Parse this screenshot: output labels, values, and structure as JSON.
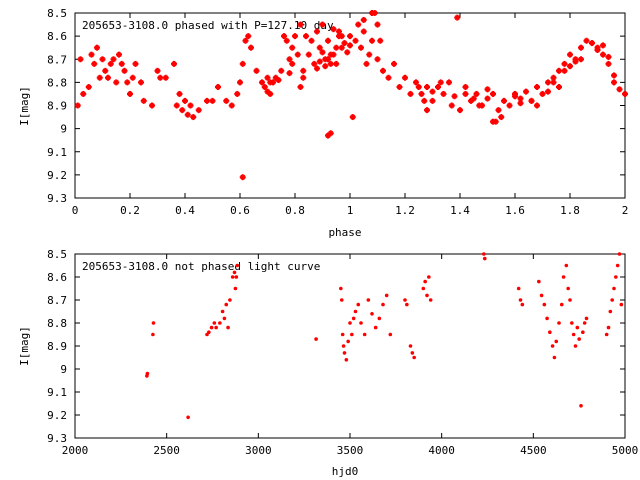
{
  "chart_data": [
    {
      "type": "scatter",
      "title": "205653-3108.0 phased with P=127.10 day",
      "xlabel": "phase",
      "ylabel": "I[mag]",
      "xlim": [
        0,
        2
      ],
      "ylim": [
        8.5,
        9.3
      ],
      "y_inverted": true,
      "grid": false,
      "color": "#ff0000",
      "x_ticks": [
        "0",
        "0.2",
        "0.4",
        "0.6",
        "0.8",
        "1",
        "1.2",
        "1.4",
        "1.6",
        "1.8",
        "2"
      ],
      "y_ticks": [
        "8.5",
        "8.6",
        "8.7",
        "8.8",
        "8.9",
        "9",
        "9.1",
        "9.2",
        "9.3"
      ],
      "x": [
        0.01,
        0.02,
        0.03,
        0.05,
        0.06,
        0.07,
        0.08,
        0.09,
        0.1,
        0.11,
        0.12,
        0.13,
        0.14,
        0.15,
        0.16,
        0.17,
        0.18,
        0.19,
        0.2,
        0.21,
        0.22,
        0.24,
        0.25,
        0.28,
        0.3,
        0.31,
        0.33,
        0.36,
        0.37,
        0.38,
        0.39,
        0.4,
        0.41,
        0.42,
        0.43,
        0.45,
        0.48,
        0.5,
        0.52,
        0.55,
        0.57,
        0.59,
        0.6,
        0.61,
        0.62,
        0.63,
        0.64,
        0.66,
        0.68,
        0.69,
        0.7,
        0.71,
        0.72,
        0.73,
        0.75,
        0.76,
        0.77,
        0.78,
        0.79,
        0.8,
        0.81,
        0.82,
        0.83,
        0.84,
        0.85,
        0.86,
        0.87,
        0.88,
        0.89,
        0.9,
        0.91,
        0.92,
        0.93,
        0.94,
        0.95,
        0.96,
        0.97,
        0.98,
        0.99,
        1.0,
        1.02,
        1.03,
        1.04,
        1.05,
        1.06,
        1.07,
        1.08,
        1.09,
        1.1,
        1.12,
        1.14,
        1.16,
        1.18,
        1.2,
        1.22,
        1.24,
        1.26,
        1.28,
        1.3,
        1.32,
        1.34,
        1.36,
        1.37,
        1.38,
        1.4,
        1.42,
        1.44,
        1.46,
        1.48,
        1.5,
        1.52,
        1.54,
        1.56,
        1.58,
        1.6,
        1.62,
        1.64,
        1.66,
        1.68,
        1.7,
        1.72,
        1.74,
        1.76,
        1.78,
        1.8,
        1.82,
        1.84,
        1.86,
        1.88,
        1.9,
        1.92,
        1.94,
        1.96,
        1.98,
        2.0,
        1.01,
        1.53,
        0.61,
        0.93,
        0.92,
        1.39
      ],
      "y": [
        8.9,
        8.7,
        8.85,
        8.82,
        8.68,
        8.72,
        8.65,
        8.78,
        8.7,
        8.75,
        8.78,
        8.72,
        8.7,
        8.8,
        8.68,
        8.72,
        8.75,
        8.8,
        8.85,
        8.78,
        8.72,
        8.8,
        8.88,
        8.9,
        8.75,
        8.78,
        8.78,
        8.72,
        8.9,
        8.85,
        8.92,
        8.88,
        8.94,
        8.9,
        8.95,
        8.92,
        8.88,
        8.88,
        8.82,
        8.88,
        8.9,
        8.85,
        8.8,
        8.72,
        8.62,
        8.6,
        8.65,
        8.75,
        8.8,
        8.82,
        8.78,
        8.85,
        8.8,
        8.78,
        8.75,
        8.6,
        8.62,
        8.7,
        8.65,
        8.6,
        8.68,
        8.55,
        8.75,
        8.6,
        8.68,
        8.62,
        8.72,
        8.58,
        8.65,
        8.55,
        8.7,
        8.62,
        8.68,
        8.57,
        8.72,
        8.6,
        8.65,
        8.63,
        8.67,
        8.6,
        8.62,
        8.55,
        8.65,
        8.58,
        8.72,
        8.68,
        8.62,
        8.5,
        8.7,
        8.75,
        8.78,
        8.72,
        8.82,
        8.78,
        8.85,
        8.8,
        8.85,
        8.82,
        8.88,
        8.82,
        8.85,
        8.8,
        8.9,
        8.86,
        8.92,
        8.85,
        8.88,
        8.85,
        8.9,
        8.87,
        8.85,
        8.92,
        8.88,
        8.9,
        8.85,
        8.87,
        8.84,
        8.88,
        8.82,
        8.85,
        8.8,
        8.78,
        8.75,
        8.72,
        8.68,
        8.7,
        8.65,
        8.62,
        8.63,
        8.65,
        8.68,
        8.72,
        8.8,
        8.83,
        8.85,
        8.95,
        8.97,
        9.21,
        9.02,
        9.03,
        8.52
      ],
      "x2": [
        0.92,
        0.93,
        0.94,
        0.95,
        0.9,
        0.91,
        0.96,
        0.97,
        1.0,
        1.1,
        1.08,
        1.11,
        1.05,
        0.82,
        0.83,
        0.78,
        0.79,
        0.88,
        0.89,
        0.7,
        0.71,
        0.74,
        1.5,
        1.52,
        1.55,
        1.25,
        1.27,
        1.28,
        1.3,
        1.33,
        1.42,
        1.45,
        1.47,
        1.6,
        1.62,
        1.66,
        1.68,
        1.72,
        1.74,
        1.76,
        1.78,
        1.8,
        1.82,
        1.84,
        1.9,
        1.92,
        1.94,
        1.96
      ],
      "y2": [
        8.7,
        8.72,
        8.68,
        8.65,
        8.67,
        8.73,
        8.58,
        8.6,
        8.64,
        8.55,
        8.5,
        8.62,
        8.53,
        8.82,
        8.78,
        8.76,
        8.72,
        8.74,
        8.71,
        8.84,
        8.8,
        8.79,
        8.83,
        8.97,
        8.95,
        8.82,
        8.88,
        8.92,
        8.84,
        8.8,
        8.82,
        8.87,
        8.9,
        8.86,
        8.89,
        8.88,
        8.9,
        8.84,
        8.8,
        8.82,
        8.75,
        8.73,
        8.71,
        8.7,
        8.66,
        8.64,
        8.69,
        8.77
      ]
    },
    {
      "type": "scatter",
      "title": "205653-3108.0 not phased light curve",
      "xlabel": "hjd0",
      "ylabel": "I[mag]",
      "xlim": [
        2000,
        5000
      ],
      "ylim": [
        8.5,
        9.3
      ],
      "y_inverted": true,
      "grid": false,
      "color": "#ff0000",
      "x_ticks": [
        "2000",
        "2500",
        "3000",
        "3500",
        "4000",
        "4500",
        "5000"
      ],
      "y_ticks": [
        "8.5",
        "8.6",
        "8.7",
        "8.8",
        "8.9",
        "9",
        "9.1",
        "9.2",
        "9.3"
      ],
      "x": [
        2392,
        2395,
        2425,
        2428,
        2617,
        2720,
        2730,
        2745,
        2760,
        2770,
        2790,
        2805,
        2815,
        2825,
        2835,
        2845,
        2860,
        2870,
        2875,
        2880,
        2885,
        3315,
        3450,
        3455,
        3460,
        3465,
        3470,
        3480,
        3490,
        3500,
        3510,
        3520,
        3530,
        3545,
        3560,
        3580,
        3600,
        3620,
        3640,
        3660,
        3680,
        3700,
        3720,
        3800,
        3810,
        3830,
        3840,
        3850,
        3900,
        3910,
        3920,
        3930,
        3940,
        4230,
        4235,
        4420,
        4430,
        4440,
        4530,
        4545,
        4560,
        4575,
        4590,
        4605,
        4615,
        4625,
        4640,
        4655,
        4665,
        4680,
        4690,
        4700,
        4710,
        4720,
        4730,
        4740,
        4750,
        4760,
        4770,
        4780,
        4790,
        4900,
        4910,
        4920,
        4930,
        4940,
        4950,
        4960,
        4970,
        4980
      ],
      "y": [
        9.03,
        9.02,
        8.85,
        8.8,
        9.21,
        8.85,
        8.84,
        8.82,
        8.8,
        8.82,
        8.8,
        8.75,
        8.78,
        8.72,
        8.82,
        8.7,
        8.6,
        8.58,
        8.65,
        8.6,
        8.55,
        8.87,
        8.65,
        8.7,
        8.85,
        8.9,
        8.93,
        8.96,
        8.88,
        8.8,
        8.85,
        8.78,
        8.75,
        8.72,
        8.8,
        8.85,
        8.7,
        8.76,
        8.82,
        8.78,
        8.72,
        8.68,
        8.85,
        8.7,
        8.72,
        8.9,
        8.93,
        8.95,
        8.65,
        8.62,
        8.68,
        8.6,
        8.7,
        8.5,
        8.52,
        8.65,
        8.7,
        8.72,
        8.62,
        8.68,
        8.72,
        8.78,
        8.84,
        8.9,
        8.95,
        8.88,
        8.8,
        8.72,
        8.6,
        8.55,
        8.65,
        8.7,
        8.8,
        8.85,
        8.9,
        8.82,
        8.87,
        9.16,
        8.84,
        8.8,
        8.78,
        8.85,
        8.82,
        8.75,
        8.7,
        8.65,
        8.6,
        8.55,
        8.5,
        8.72
      ]
    }
  ]
}
